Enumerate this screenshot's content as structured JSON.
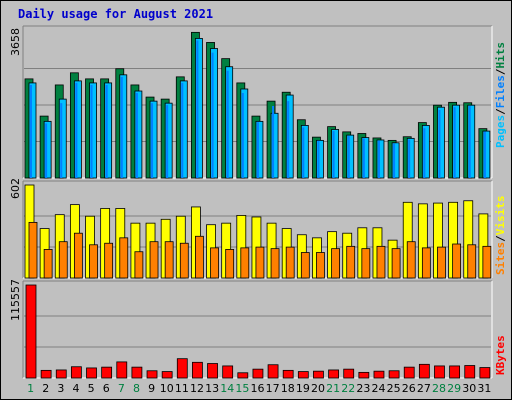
{
  "title": "Daily usage for August 2021",
  "colors": {
    "hits": "#008040",
    "files": "#0080ff",
    "pages": "#00c0ff",
    "visits": "#ff8000",
    "sites": "#ffff00",
    "kbytes": "#ff0000",
    "background": "#c0c0c0",
    "weekend_day_label": "#008040"
  },
  "chart_data": [
    {
      "type": "bar",
      "panel": "hits-files-pages",
      "ymax_label": "3658",
      "ylim": [
        0,
        3658
      ],
      "legend": [
        "Pages",
        "/",
        "Files",
        "/",
        "Hits"
      ],
      "categories": [
        "1",
        "2",
        "3",
        "4",
        "5",
        "6",
        "7",
        "8",
        "9",
        "10",
        "11",
        "12",
        "13",
        "14",
        "15",
        "16",
        "17",
        "18",
        "19",
        "20",
        "21",
        "22",
        "23",
        "24",
        "25",
        "26",
        "27",
        "28",
        "29",
        "30",
        "31"
      ],
      "series": [
        {
          "name": "Hits",
          "values": [
            2450,
            1530,
            2300,
            2600,
            2450,
            2450,
            2700,
            2300,
            2000,
            1950,
            2500,
            3600,
            3350,
            2950,
            2350,
            1530,
            1900,
            2120,
            1440,
            1010,
            1270,
            1140,
            1100,
            990,
            930,
            1020,
            1370,
            1800,
            1870,
            1860,
            1220
          ]
        },
        {
          "name": "Files",
          "values": [
            2300,
            1350,
            1850,
            2350,
            2300,
            2300,
            2500,
            2100,
            1850,
            1800,
            2350,
            3400,
            3100,
            2650,
            2100,
            1380,
            1780,
            1900,
            1250,
            920,
            1160,
            1040,
            980,
            920,
            850,
            950,
            1230,
            1680,
            1750,
            1780,
            1150
          ]
        },
        {
          "name": "Pages",
          "values": [
            2350,
            1400,
            1950,
            2400,
            2350,
            2350,
            2550,
            2150,
            1900,
            1850,
            2400,
            3450,
            3200,
            2750,
            2200,
            1400,
            1600,
            2050,
            1300,
            930,
            1200,
            1060,
            1000,
            940,
            870,
            980,
            1300,
            1750,
            1800,
            1800,
            1160
          ]
        }
      ]
    },
    {
      "type": "bar",
      "panel": "visits-sites",
      "ymax_label": "602",
      "ylim": [
        0,
        602
      ],
      "legend": [
        "Sites",
        "/",
        "Visits"
      ],
      "categories": [
        "1",
        "2",
        "3",
        "4",
        "5",
        "6",
        "7",
        "8",
        "9",
        "10",
        "11",
        "12",
        "13",
        "14",
        "15",
        "16",
        "17",
        "18",
        "19",
        "20",
        "21",
        "22",
        "23",
        "24",
        "25",
        "26",
        "27",
        "28",
        "29",
        "30",
        "31"
      ],
      "series": [
        {
          "name": "Visits",
          "values": [
            360,
            185,
            235,
            290,
            215,
            225,
            260,
            170,
            235,
            235,
            225,
            270,
            195,
            185,
            195,
            200,
            190,
            200,
            165,
            165,
            190,
            205,
            190,
            205,
            190,
            235,
            195,
            200,
            220,
            215,
            205
          ]
        },
        {
          "name": "Sites",
          "values": [
            602,
            320,
            410,
            475,
            400,
            450,
            450,
            355,
            355,
            380,
            400,
            460,
            345,
            355,
            405,
            395,
            355,
            320,
            280,
            260,
            300,
            290,
            325,
            325,
            245,
            490,
            480,
            485,
            490,
            500,
            415
          ]
        }
      ]
    },
    {
      "type": "bar",
      "panel": "kbytes",
      "ymax_label": "115557",
      "ylim": [
        0,
        115557
      ],
      "legend": [
        "KBytes"
      ],
      "categories": [
        "1",
        "2",
        "3",
        "4",
        "5",
        "6",
        "7",
        "8",
        "9",
        "10",
        "11",
        "12",
        "13",
        "14",
        "15",
        "16",
        "17",
        "18",
        "19",
        "20",
        "21",
        "22",
        "23",
        "24",
        "25",
        "26",
        "27",
        "28",
        "29",
        "30",
        "31"
      ],
      "series": [
        {
          "name": "KBytes",
          "values": [
            115557,
            9500,
            10000,
            14000,
            12500,
            13500,
            20000,
            13500,
            9000,
            8000,
            24000,
            19500,
            18000,
            15000,
            6500,
            11000,
            16500,
            9500,
            8000,
            8500,
            10000,
            11000,
            7000,
            8500,
            9000,
            13500,
            17000,
            15000,
            15000,
            15500,
            13000
          ]
        }
      ]
    }
  ]
}
